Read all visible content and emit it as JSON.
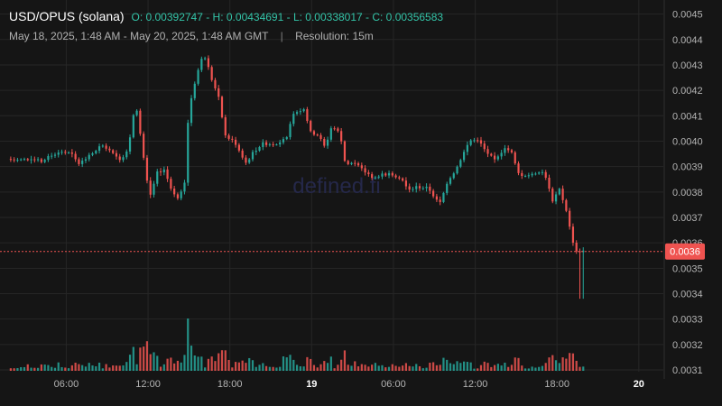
{
  "header": {
    "pair": "USD/OPUS (solana)",
    "ohlc": "O: 0.00392747 - H: 0.00434691 - L: 0.00338017 - C: 0.00356583",
    "range": "May 18, 2025, 1:48 AM - May 20, 2025, 1:48 AM GMT",
    "separator": "|",
    "resolution": "Resolution: 15m"
  },
  "watermark": "defined.fi",
  "colors": {
    "background": "#151515",
    "grid": "#262626",
    "up": "#26a69a",
    "down": "#ef5350",
    "price_line": "#ef5350",
    "text": "#b4b4b4",
    "watermark": "#25284a"
  },
  "chart_data": {
    "type": "candlestick",
    "interval": "15m",
    "current_price": {
      "value": 0.003566,
      "label": "0.0036"
    },
    "ylim": [
      0.0031,
      0.00452
    ],
    "y_ticks": [
      {
        "value": 0.0045,
        "label": "0.0045"
      },
      {
        "value": 0.0044,
        "label": "0.0044"
      },
      {
        "value": 0.0043,
        "label": "0.0043"
      },
      {
        "value": 0.0042,
        "label": "0.0042"
      },
      {
        "value": 0.0041,
        "label": "0.0041"
      },
      {
        "value": 0.004,
        "label": "0.0040"
      },
      {
        "value": 0.0039,
        "label": "0.0039"
      },
      {
        "value": 0.0038,
        "label": "0.0038"
      },
      {
        "value": 0.0037,
        "label": "0.0037"
      },
      {
        "value": 0.0036,
        "label": "0.0036"
      },
      {
        "value": 0.0035,
        "label": "0.0035"
      },
      {
        "value": 0.0034,
        "label": "0.0034"
      },
      {
        "value": 0.0033,
        "label": "0.0033"
      },
      {
        "value": 0.0032,
        "label": "0.0032"
      },
      {
        "value": 0.0031,
        "label": "0.0031"
      }
    ],
    "x_ticks": [
      {
        "hour": 6,
        "label": "06:00",
        "bold": false
      },
      {
        "hour": 12,
        "label": "12:00",
        "bold": false
      },
      {
        "hour": 18,
        "label": "18:00",
        "bold": false
      },
      {
        "hour": 24,
        "label": "19",
        "bold": true
      },
      {
        "hour": 30,
        "label": "06:00",
        "bold": false
      },
      {
        "hour": 36,
        "label": "12:00",
        "bold": false
      },
      {
        "hour": 42,
        "label": "18:00",
        "bold": false
      },
      {
        "hour": 48,
        "label": "20",
        "bold": true
      }
    ],
    "x_range_hours": [
      1.8,
      49.8
    ],
    "price_path": [
      [
        1.8,
        0.00393
      ],
      [
        2.5,
        0.003925
      ],
      [
        3.5,
        0.00393
      ],
      [
        4.3,
        0.00392
      ],
      [
        4.9,
        0.00394
      ],
      [
        5.7,
        0.00396
      ],
      [
        6.5,
        0.00395
      ],
      [
        7.0,
        0.00391
      ],
      [
        7.8,
        0.00394
      ],
      [
        8.6,
        0.00398
      ],
      [
        9.2,
        0.003975
      ],
      [
        9.6,
        0.00395
      ],
      [
        10.1,
        0.00393
      ],
      [
        10.7,
        0.003965
      ],
      [
        11.0,
        0.0041
      ],
      [
        11.3,
        0.004125
      ],
      [
        11.7,
        0.00397
      ],
      [
        12.0,
        0.00385
      ],
      [
        12.3,
        0.00379
      ],
      [
        12.8,
        0.003875
      ],
      [
        13.3,
        0.00389
      ],
      [
        13.8,
        0.003815
      ],
      [
        14.3,
        0.003775
      ],
      [
        14.8,
        0.00384
      ],
      [
        15.1,
        0.00412
      ],
      [
        15.5,
        0.00422
      ],
      [
        16.0,
        0.00432
      ],
      [
        16.4,
        0.00433
      ],
      [
        16.8,
        0.00424
      ],
      [
        17.3,
        0.00417
      ],
      [
        17.8,
        0.00402
      ],
      [
        18.5,
        0.003995
      ],
      [
        19.3,
        0.003915
      ],
      [
        19.9,
        0.00396
      ],
      [
        20.5,
        0.00399
      ],
      [
        21.5,
        0.00399
      ],
      [
        22.3,
        0.00402
      ],
      [
        22.8,
        0.00411
      ],
      [
        23.6,
        0.00413
      ],
      [
        24.0,
        0.004035
      ],
      [
        24.6,
        0.004025
      ],
      [
        25.1,
        0.003975
      ],
      [
        25.6,
        0.00406
      ],
      [
        26.2,
        0.00403
      ],
      [
        26.6,
        0.00391
      ],
      [
        27.2,
        0.003915
      ],
      [
        28.0,
        0.00388
      ],
      [
        28.7,
        0.003855
      ],
      [
        29.3,
        0.00387
      ],
      [
        30.0,
        0.00387
      ],
      [
        30.7,
        0.003855
      ],
      [
        31.2,
        0.003805
      ],
      [
        31.8,
        0.00382
      ],
      [
        32.7,
        0.003815
      ],
      [
        33.5,
        0.00375
      ],
      [
        34.1,
        0.00384
      ],
      [
        34.7,
        0.00389
      ],
      [
        35.3,
        0.00396
      ],
      [
        35.9,
        0.00401
      ],
      [
        36.4,
        0.004
      ],
      [
        36.9,
        0.00396
      ],
      [
        37.6,
        0.00392
      ],
      [
        38.2,
        0.00397
      ],
      [
        38.8,
        0.00396
      ],
      [
        39.4,
        0.00386
      ],
      [
        39.9,
        0.00387
      ],
      [
        40.4,
        0.003865
      ],
      [
        41.2,
        0.00388
      ],
      [
        41.8,
        0.00376
      ],
      [
        42.3,
        0.00381
      ],
      [
        42.8,
        0.00373
      ],
      [
        43.2,
        0.00362
      ],
      [
        43.6,
        0.00356
      ],
      [
        43.8,
        0.003566
      ]
    ],
    "volume_scale_max": 1.0
  }
}
